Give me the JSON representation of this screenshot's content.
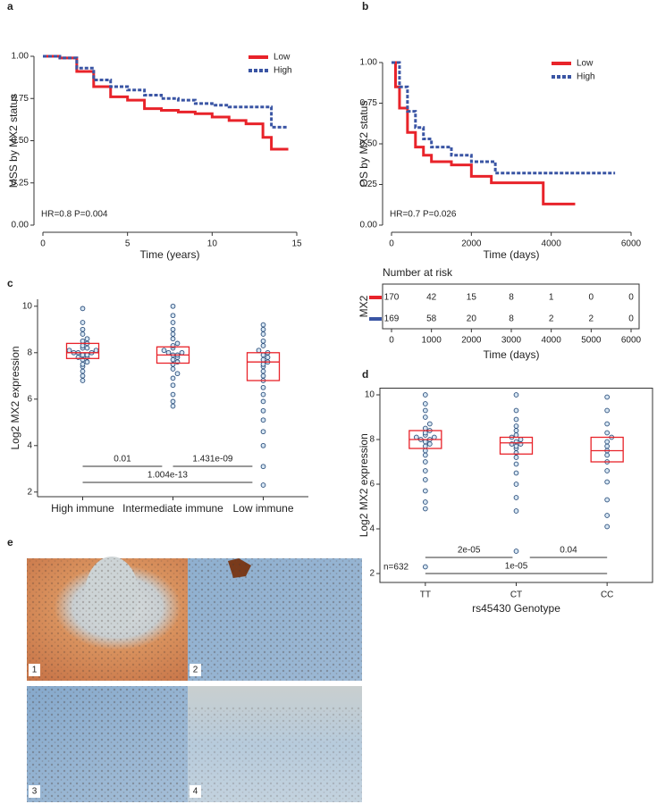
{
  "chart_data": [
    {
      "type": "km",
      "panel": "a",
      "ylabel": "MSS by MX2 status",
      "xlabel": "Time (years)",
      "annotation": "HR=0.8 P=0.004",
      "xlim": [
        0,
        15
      ],
      "xticks": [
        0,
        5,
        10,
        15
      ],
      "ylim": [
        0,
        1
      ],
      "yticks": [
        {
          "value": 0,
          "label": "0.00"
        },
        {
          "value": 0.25,
          "label": "0.25"
        },
        {
          "value": 0.5,
          "label": "0.50"
        },
        {
          "value": 0.75,
          "label": "0.75"
        },
        {
          "value": 1,
          "label": "1.00"
        }
      ],
      "series": [
        {
          "name": "Low",
          "color": "#e8232a",
          "x": [
            0,
            1,
            2,
            3,
            4,
            5,
            6,
            7,
            8,
            9,
            10,
            11,
            12,
            13,
            13.5,
            14.5
          ],
          "values": [
            1,
            0.99,
            0.91,
            0.82,
            0.76,
            0.74,
            0.69,
            0.68,
            0.67,
            0.66,
            0.64,
            0.62,
            0.6,
            0.52,
            0.45,
            0.45
          ]
        },
        {
          "name": "High",
          "color": "#3a55a4",
          "x": [
            0,
            1,
            2,
            3,
            4,
            5,
            6,
            7,
            8,
            9,
            10,
            11,
            12,
            13,
            13.5,
            14.5
          ],
          "values": [
            1,
            0.99,
            0.93,
            0.86,
            0.82,
            0.8,
            0.77,
            0.75,
            0.74,
            0.72,
            0.71,
            0.7,
            0.7,
            0.7,
            0.58,
            0.58
          ]
        }
      ]
    },
    {
      "type": "km",
      "panel": "b",
      "ylabel": "OS by MX2 status",
      "xlabel": "Time (days)",
      "annotation": "HR=0.7 P=0.026",
      "xlim": [
        0,
        6000
      ],
      "xticks": [
        0,
        2000,
        4000,
        6000
      ],
      "ylim": [
        0,
        1
      ],
      "yticks": [
        {
          "value": 0,
          "label": "0.00"
        },
        {
          "value": 0.25,
          "label": "0.25"
        },
        {
          "value": 0.5,
          "label": "0.50"
        },
        {
          "value": 0.75,
          "label": "0.75"
        },
        {
          "value": 1,
          "label": "1.00"
        }
      ],
      "series": [
        {
          "name": "Low",
          "color": "#e8232a",
          "x": [
            0,
            100,
            200,
            400,
            600,
            800,
            1000,
            1500,
            2000,
            2500,
            3000,
            3800,
            4600
          ],
          "values": [
            1,
            0.85,
            0.72,
            0.57,
            0.48,
            0.43,
            0.39,
            0.37,
            0.3,
            0.26,
            0.26,
            0.13,
            0.13
          ]
        },
        {
          "name": "High",
          "color": "#3a55a4",
          "x": [
            0,
            200,
            400,
            600,
            800,
            1000,
            1500,
            2000,
            2600,
            3000,
            5600
          ],
          "values": [
            1,
            0.85,
            0.7,
            0.6,
            0.53,
            0.48,
            0.43,
            0.39,
            0.32,
            0.32,
            0.32
          ]
        }
      ]
    },
    {
      "type": "risk-table",
      "title": "Number at risk",
      "group_label": "MX2",
      "xlabel": "Time (days)",
      "xlim": [
        0,
        6000
      ],
      "xticks": [
        0,
        1000,
        2000,
        3000,
        4000,
        5000,
        6000
      ],
      "rows": [
        {
          "color": "#e8232a",
          "values": [
            170,
            42,
            15,
            8,
            1,
            0,
            0
          ]
        },
        {
          "color": "#3a55a4",
          "values": [
            169,
            58,
            20,
            8,
            2,
            2,
            0
          ]
        }
      ]
    },
    {
      "type": "beeswarm",
      "panel": "c",
      "ylabel": "Log2 MX2 expression",
      "categories": [
        "High immune",
        "Intermediate immune",
        "Low immune"
      ],
      "ylim": [
        1.8,
        10.3
      ],
      "yticks": [
        2,
        4,
        6,
        8,
        10
      ],
      "boxes": [
        {
          "q1": 7.75,
          "median": 8.0,
          "q3": 8.4
        },
        {
          "q1": 7.55,
          "median": 7.9,
          "q3": 8.25
        },
        {
          "q1": 6.8,
          "median": 7.6,
          "q3": 8.0
        }
      ],
      "points": [
        [
          6.8,
          7.0,
          7.2,
          7.4,
          7.5,
          7.6,
          7.7,
          7.8,
          7.8,
          7.9,
          7.9,
          8.0,
          8.0,
          8.0,
          8.1,
          8.1,
          8.2,
          8.2,
          8.3,
          8.4,
          8.5,
          8.6,
          8.8,
          9.0,
          9.3,
          9.9
        ],
        [
          5.7,
          5.9,
          6.2,
          6.6,
          6.9,
          7.1,
          7.3,
          7.5,
          7.6,
          7.7,
          7.8,
          7.9,
          7.9,
          8.0,
          8.0,
          8.1,
          8.2,
          8.3,
          8.4,
          8.6,
          8.8,
          9.0,
          9.3,
          9.6,
          10.0
        ],
        [
          2.3,
          3.1,
          4.0,
          4.6,
          5.1,
          5.5,
          5.9,
          6.2,
          6.5,
          6.8,
          7.0,
          7.2,
          7.4,
          7.5,
          7.6,
          7.7,
          7.8,
          7.9,
          8.0,
          8.1,
          8.3,
          8.5,
          8.8,
          9.0,
          9.2
        ]
      ],
      "comparisons": [
        "0.01",
        "1.431e-09",
        "1.004e-13"
      ]
    },
    {
      "type": "beeswarm",
      "panel": "d",
      "ylabel": "Log2 MX2 expression",
      "xlabel": "rs45430 Genotype",
      "annotation": "n=632",
      "categories": [
        "TT",
        "CT",
        "CC"
      ],
      "ylim": [
        1.6,
        10.3
      ],
      "yticks": [
        2,
        4,
        6,
        8,
        10
      ],
      "boxes": [
        {
          "q1": 7.6,
          "median": 8.0,
          "q3": 8.4
        },
        {
          "q1": 7.35,
          "median": 7.85,
          "q3": 8.1
        },
        {
          "q1": 7.0,
          "median": 7.5,
          "q3": 8.1
        }
      ],
      "points": [
        [
          2.3,
          4.9,
          5.2,
          5.7,
          6.2,
          6.6,
          7.0,
          7.3,
          7.5,
          7.7,
          7.8,
          7.9,
          8.0,
          8.0,
          8.1,
          8.1,
          8.2,
          8.3,
          8.4,
          8.5,
          8.7,
          9.0,
          9.3,
          9.6,
          10.0
        ],
        [
          3.0,
          4.8,
          5.4,
          6.0,
          6.5,
          6.9,
          7.2,
          7.4,
          7.6,
          7.7,
          7.8,
          7.8,
          7.9,
          8.0,
          8.1,
          8.2,
          8.4,
          8.6,
          8.9,
          9.3,
          10.0
        ],
        [
          4.1,
          4.6,
          5.3,
          6.1,
          6.6,
          7.0,
          7.3,
          7.5,
          7.7,
          7.9,
          8.1,
          8.3,
          8.7,
          9.3,
          9.9
        ]
      ],
      "comparisons": [
        "2e-05",
        "0.04",
        "1e-05"
      ]
    }
  ],
  "panel_e": {
    "panel": "e",
    "images": [
      "1",
      "2",
      "3",
      "4"
    ]
  }
}
